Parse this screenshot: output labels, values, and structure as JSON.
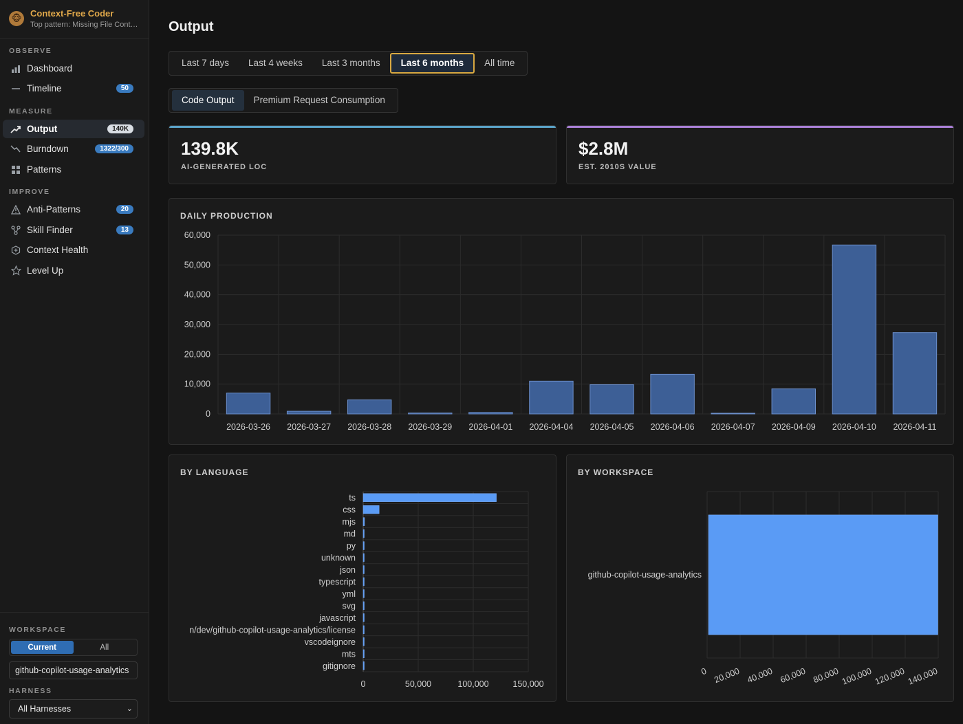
{
  "sidebar": {
    "brand": {
      "name": "Context-Free Coder",
      "subtitle": "Top pattern: Missing File Context"
    },
    "sections": [
      {
        "label": "OBSERVE"
      },
      {
        "label": "MEASURE"
      },
      {
        "label": "IMPROVE"
      }
    ],
    "items": [
      {
        "label": "Dashboard",
        "icon": "bar-chart-icon"
      },
      {
        "label": "Timeline",
        "icon": "timeline-icon",
        "badge": "50"
      },
      {
        "label": "Output",
        "icon": "trend-up-icon",
        "badge": "140K",
        "active": true
      },
      {
        "label": "Burndown",
        "icon": "trend-down-icon",
        "badge": "1322/300"
      },
      {
        "label": "Patterns",
        "icon": "grid-icon"
      },
      {
        "label": "Anti-Patterns",
        "icon": "warning-icon",
        "badge": "20"
      },
      {
        "label": "Skill Finder",
        "icon": "network-icon",
        "badge": "13"
      },
      {
        "label": "Context Health",
        "icon": "hexagon-plus-icon"
      },
      {
        "label": "Level Up",
        "icon": "star-icon"
      }
    ],
    "workspace": {
      "label": "WORKSPACE",
      "toggle": [
        "Current",
        "All"
      ],
      "selected": "Current",
      "value": "github-copilot-usage-analytics"
    },
    "harness": {
      "label": "HARNESS",
      "selected": "All Harnesses"
    }
  },
  "main": {
    "title": "Output",
    "time_tabs": [
      "Last 7 days",
      "Last 4 weeks",
      "Last 3 months",
      "Last 6 months",
      "All time"
    ],
    "time_selected": "Last 6 months",
    "view_tabs": [
      "Code Output",
      "Premium Request Consumption"
    ],
    "view_selected": "Code Output",
    "kpis": [
      {
        "value": "139.8K",
        "label": "AI-GENERATED LOC",
        "color": "#5aa3c8"
      },
      {
        "value": "$2.8M",
        "label": "EST. 2010S VALUE",
        "color": "#a97fd6"
      }
    ]
  },
  "colors": {
    "bar": "#3d5f96",
    "bar_stroke": "#6c8fcb",
    "bar_bright": "#5a9bf5",
    "accent_gold": "#d9a941"
  },
  "chart_data": [
    {
      "type": "bar",
      "title": "DAILY PRODUCTION",
      "categories": [
        "2026-03-26",
        "2026-03-27",
        "2026-03-28",
        "2026-03-29",
        "2026-04-01",
        "2026-04-04",
        "2026-04-05",
        "2026-04-06",
        "2026-04-07",
        "2026-04-09",
        "2026-04-10",
        "2026-04-11"
      ],
      "values": [
        7000,
        900,
        4700,
        300,
        500,
        11000,
        9800,
        13300,
        100,
        8400,
        56700,
        27300
      ],
      "ylim": [
        0,
        60000
      ],
      "yticks": [
        "0",
        "10,000",
        "20,000",
        "30,000",
        "40,000",
        "50,000",
        "60,000"
      ],
      "grid": true
    },
    {
      "type": "bar",
      "orientation": "horizontal",
      "title": "BY LANGUAGE",
      "categories": [
        "ts",
        "css",
        "mjs",
        "md",
        "py",
        "unknown",
        "json",
        "typescript",
        "yml",
        "svg",
        "javascript",
        "n/dev/github-copilot-usage-analytics/license",
        "vscodeignore",
        "mts",
        "gitignore"
      ],
      "values": [
        121000,
        14500,
        1200,
        800,
        600,
        500,
        400,
        300,
        300,
        200,
        200,
        100,
        100,
        100,
        100
      ],
      "xlim": [
        0,
        150000
      ],
      "xticks": [
        "0",
        "50,000",
        "100,000",
        "150,000"
      ],
      "grid": true
    },
    {
      "type": "bar",
      "orientation": "horizontal",
      "title": "BY WORKSPACE",
      "categories": [
        "github-copilot-usage-analytics"
      ],
      "values": [
        139800
      ],
      "xlim": [
        0,
        140000
      ],
      "xticks": [
        "0",
        "20,000",
        "40,000",
        "60,000",
        "80,000",
        "100,000",
        "120,000",
        "140,000"
      ],
      "grid": true
    }
  ]
}
